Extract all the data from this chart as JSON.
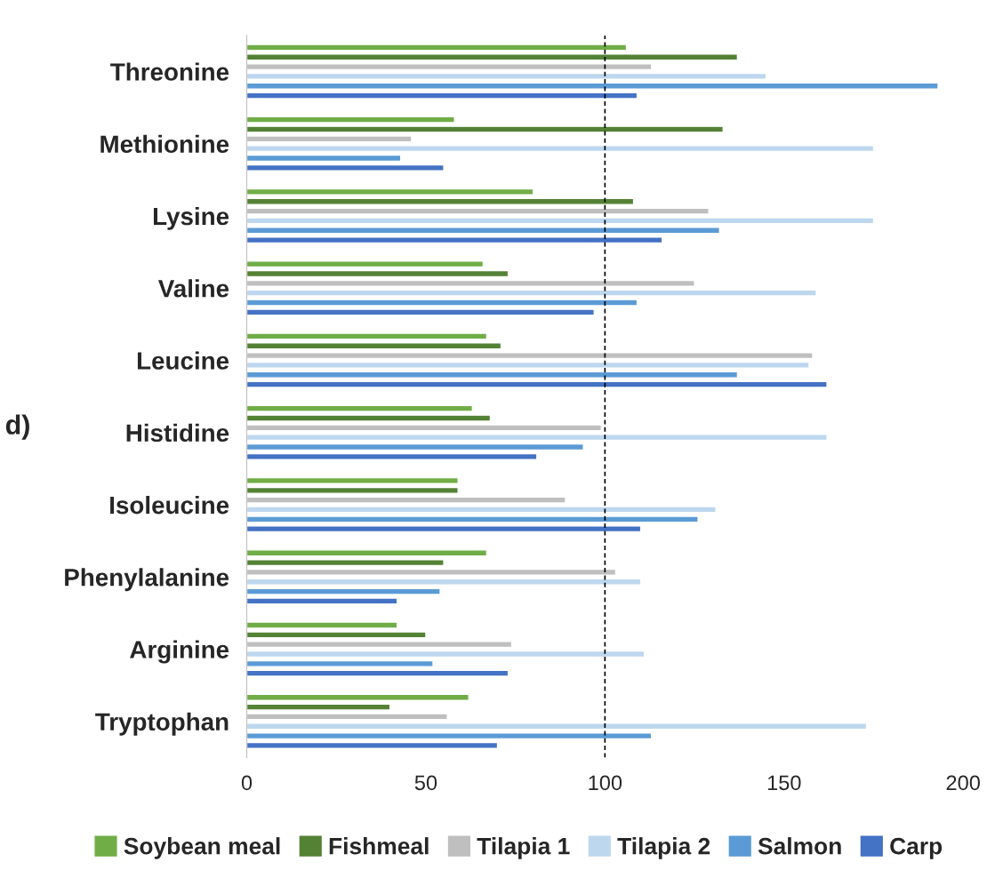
{
  "chart_data": {
    "type": "bar",
    "orientation": "horizontal",
    "categories": [
      "Threonine",
      "Methionine",
      "Lysine",
      "Valine",
      "Leucine",
      "Histidine",
      "Isoleucine",
      "Phenylalanine",
      "Arginine",
      "Tryptophan"
    ],
    "series": [
      {
        "name": "Soybean meal",
        "color": "#70ad47",
        "values": [
          106,
          58,
          80,
          66,
          67,
          63,
          59,
          67,
          42,
          62
        ]
      },
      {
        "name": "Fishmeal",
        "color": "#548235",
        "values": [
          137,
          133,
          108,
          73,
          71,
          68,
          59,
          55,
          50,
          40
        ]
      },
      {
        "name": "Tilapia 1",
        "color": "#bfbfbf",
        "values": [
          113,
          46,
          129,
          125,
          158,
          99,
          89,
          103,
          74,
          56
        ]
      },
      {
        "name": "Tilapia 2",
        "color": "#bdd7ee",
        "values": [
          145,
          175,
          175,
          159,
          157,
          162,
          131,
          110,
          111,
          173
        ]
      },
      {
        "name": "Salmon",
        "color": "#5b9bd5",
        "values": [
          193,
          43,
          132,
          109,
          137,
          94,
          126,
          54,
          52,
          113
        ]
      },
      {
        "name": "Carp",
        "color": "#4472c4",
        "values": [
          109,
          55,
          116,
          97,
          162,
          81,
          110,
          42,
          73,
          70
        ]
      }
    ],
    "xlim": [
      0,
      200
    ],
    "xticks": [
      0,
      50,
      100,
      150,
      200
    ],
    "ref_lines": [
      {
        "axis": "x",
        "value": 100,
        "color": "#000000",
        "line_style": "dashed"
      }
    ],
    "legend": "bottom",
    "grid": false,
    "annotations": [
      "d)"
    ]
  }
}
